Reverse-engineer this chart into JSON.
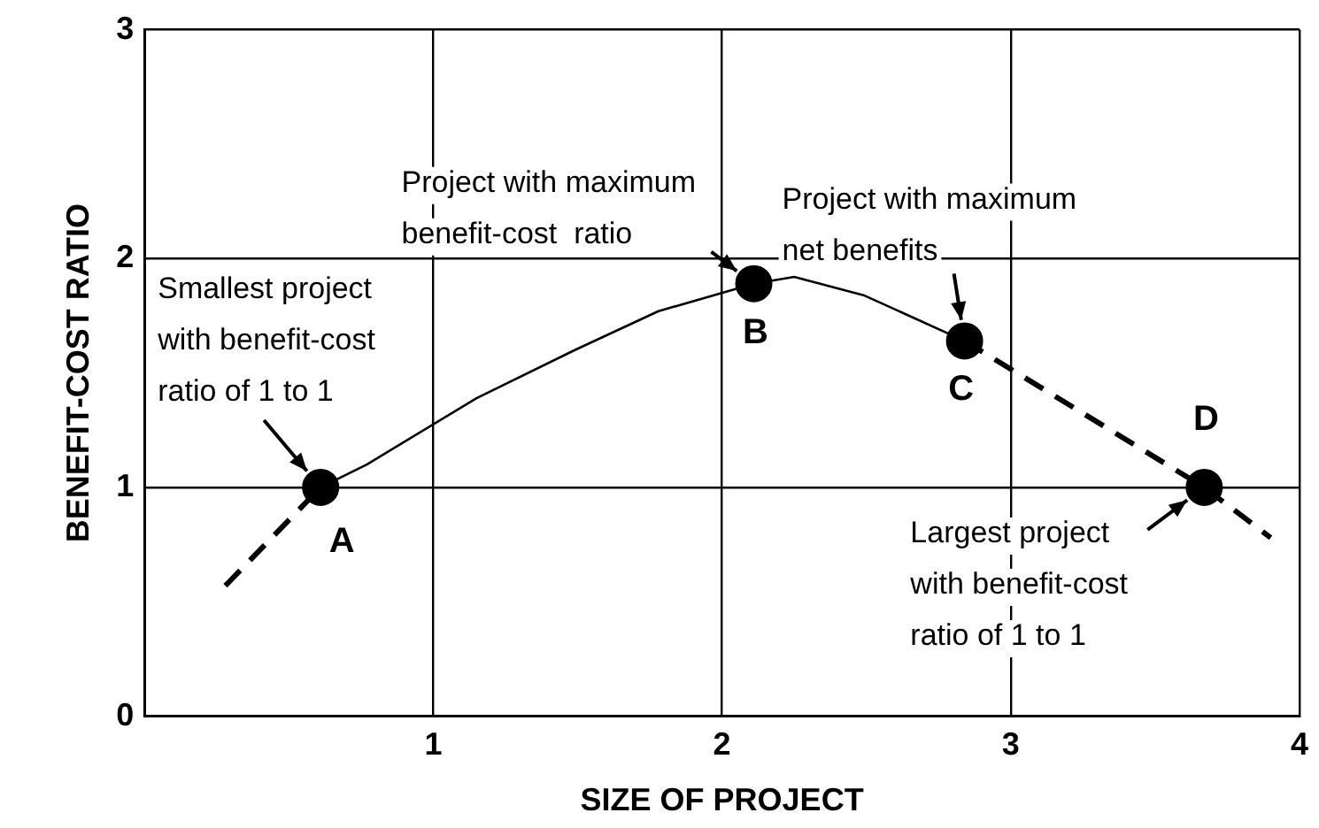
{
  "chart_data": {
    "type": "line",
    "xlabel": "SIZE OF PROJECT",
    "ylabel": "BENEFIT-COST RATIO",
    "xlim": [
      0,
      4
    ],
    "xticks": [
      {
        "value": 0,
        "label": null
      },
      1,
      2,
      3,
      4
    ],
    "ylim": [
      0,
      3
    ],
    "yticks": [
      0,
      1,
      2,
      3
    ],
    "grid": true,
    "legend": false,
    "series": [
      {
        "line_style": "dashed",
        "marker": "none",
        "color": "#000000",
        "x": [
          0.28,
          0.61
        ],
        "values": [
          0.57,
          1
        ]
      },
      {
        "line_style": "solid",
        "marker": "none",
        "color": "#000000",
        "x": [
          0.61,
          0.77,
          1.15,
          1.49,
          1.78,
          2.11,
          2.25,
          2.49,
          2.84
        ],
        "values": [
          1,
          1.1,
          1.39,
          1.6,
          1.77,
          1.89,
          1.92,
          1.84,
          1.64
        ]
      },
      {
        "line_style": "dashed",
        "marker": "none",
        "color": "#000000",
        "x": [
          2.84,
          3.67,
          3.9
        ],
        "values": [
          1.64,
          1,
          0.78
        ]
      },
      {
        "type": "scatter",
        "marker": "circle",
        "color": "#000000",
        "x": [
          0.61,
          2.11,
          2.84,
          3.67
        ],
        "values": [
          1,
          1.89,
          1.64,
          1
        ]
      }
    ],
    "annotations": [
      {
        "text": "A",
        "x": 0.61,
        "y": 1
      },
      {
        "text": "B",
        "x": 2.11,
        "y": 1.89
      },
      {
        "text": "C",
        "x": 2.84,
        "y": 1.64
      },
      {
        "text": "D",
        "x": 3.67,
        "y": 1
      },
      {
        "text": "Smallest project\nwith benefit-cost\nratio of 1 to 1",
        "x": 0.61,
        "y": 1
      },
      {
        "text": "Project with maximum\nbenefit-cost  ratio",
        "x": 2.11,
        "y": 1.89
      },
      {
        "text": "Project with maximum\nnet benefits",
        "x": 2.84,
        "y": 1.64
      },
      {
        "text": "Largest project\nwith benefit-cost\nratio of 1 to 1",
        "x": 3.67,
        "y": 1
      }
    ]
  }
}
